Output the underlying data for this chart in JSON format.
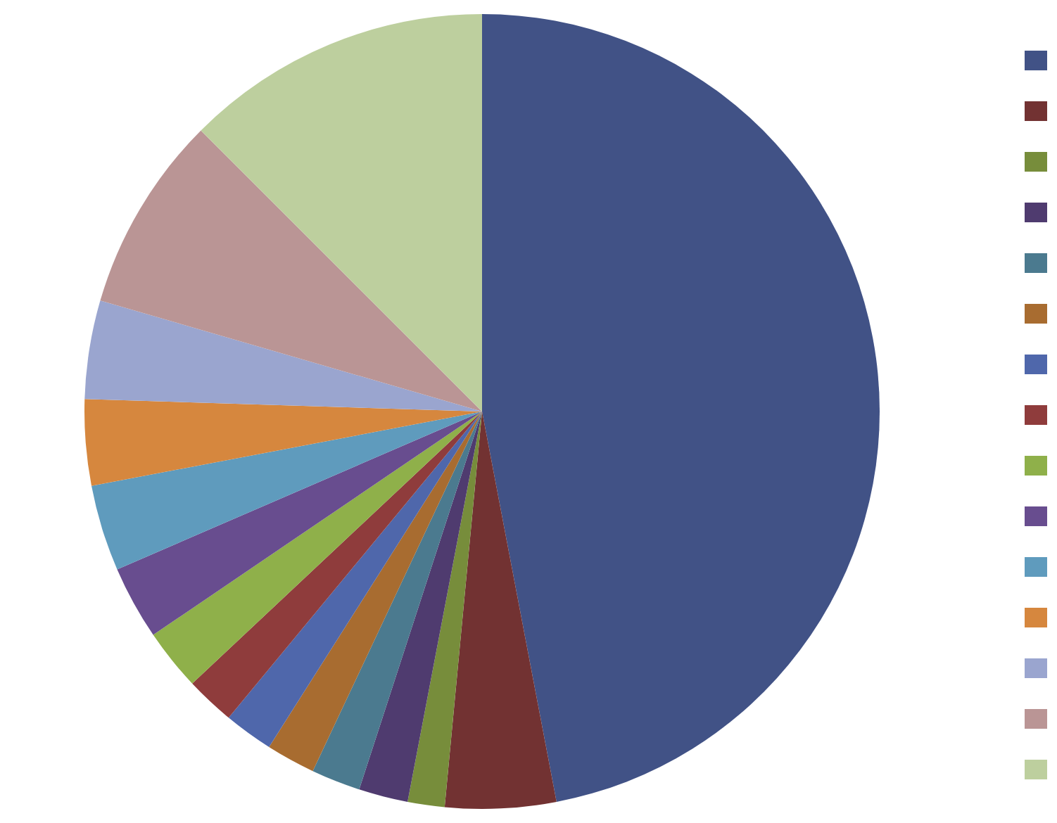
{
  "chart_data": {
    "type": "pie",
    "categories": [
      null,
      null,
      null,
      null,
      null,
      null,
      null,
      null,
      null,
      null,
      null,
      null,
      null,
      null,
      null
    ],
    "values": [
      47,
      4.5,
      1.5,
      2,
      2,
      2,
      2,
      2,
      2.5,
      3,
      3.5,
      3.5,
      4,
      8,
      12.5
    ],
    "colors": [
      "#415286",
      "#723232",
      "#778d3b",
      "#4f3b6f",
      "#4b7a8f",
      "#a86c30",
      "#4f67ab",
      "#8f3c3c",
      "#8fb04a",
      "#684d8f",
      "#5f9bbd",
      "#d6873e",
      "#9aa5cf",
      "#ba9595",
      "#bdcf9e"
    ]
  }
}
